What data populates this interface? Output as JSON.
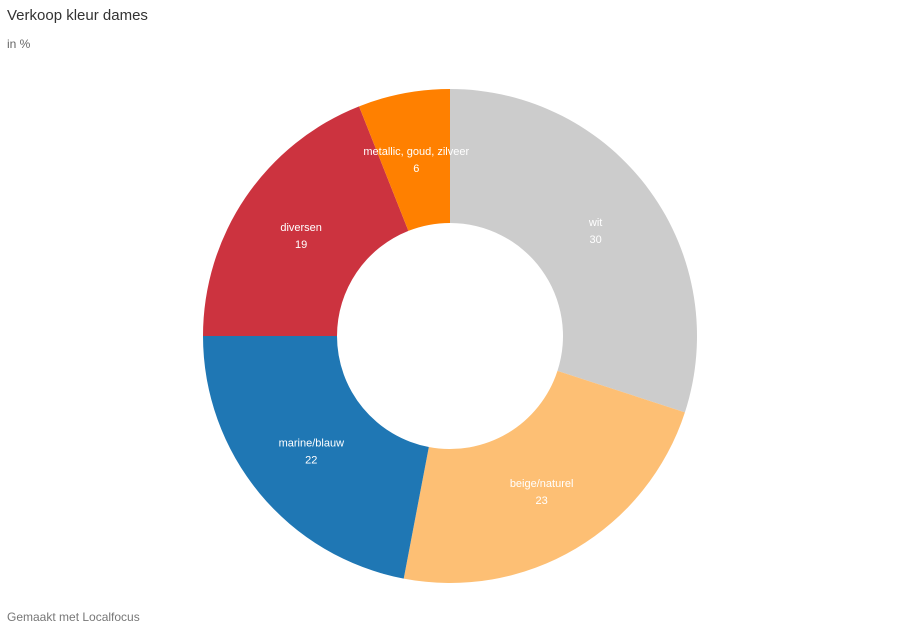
{
  "header": {
    "title": "Verkoop kleur dames",
    "subtitle": "in %"
  },
  "footer": {
    "credit": "Gemaakt met Localfocus"
  },
  "chart_data": {
    "type": "pie",
    "donut": true,
    "start": "top",
    "direction": "clockwise",
    "title": "Verkoop kleur dames",
    "subtitle": "in %",
    "slices": [
      {
        "label": "wit",
        "value": 30,
        "color": "#cccccc"
      },
      {
        "label": "beige/naturel",
        "value": 23,
        "color": "#fdbf74"
      },
      {
        "label": "marine/blauw",
        "value": 22,
        "color": "#1f77b4"
      },
      {
        "label": "diversen",
        "value": 19,
        "color": "#cc333f"
      },
      {
        "label": "metallic, goud, zilveer",
        "value": 6,
        "color": "#ff8000"
      }
    ]
  }
}
